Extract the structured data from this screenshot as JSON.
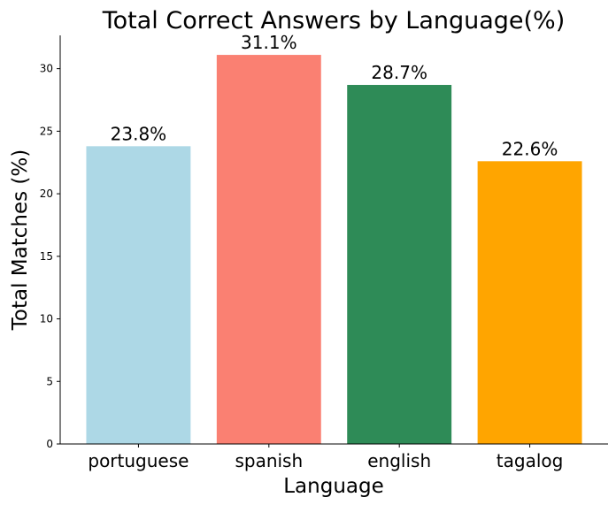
{
  "chart_data": {
    "type": "bar",
    "title": "Total Correct Answers by Language(%)",
    "xlabel": "Language",
    "ylabel": "Total Matches (%)",
    "categories": [
      "portuguese",
      "spanish",
      "english",
      "tagalog"
    ],
    "values": [
      23.8,
      31.1,
      28.7,
      22.6
    ],
    "data_labels": [
      "23.8%",
      "31.1%",
      "28.7%",
      "22.6%"
    ],
    "colors": [
      "#add8e6",
      "#fa8072",
      "#2e8b57",
      "#ffa500"
    ],
    "yticks": [
      0,
      5,
      10,
      15,
      20,
      25,
      30
    ],
    "ytick_labels": [
      "0",
      "5",
      "10",
      "15",
      "20",
      "25",
      "30"
    ],
    "ylim": [
      0,
      32.66
    ],
    "grid": false,
    "legend": "none"
  }
}
